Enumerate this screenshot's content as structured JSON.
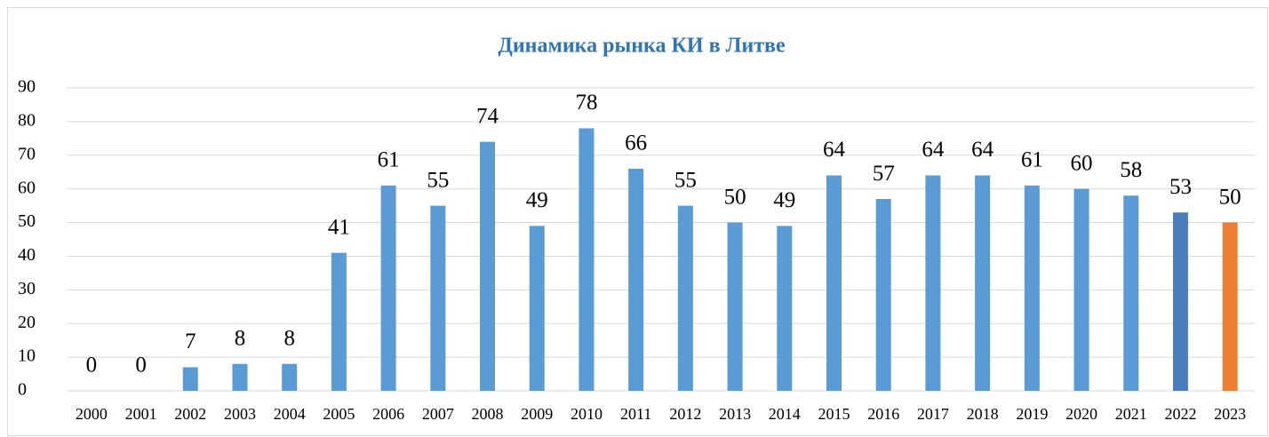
{
  "chart_data": {
    "type": "bar",
    "title": "Динамика рынка КИ в Литве",
    "categories": [
      "2000",
      "2001",
      "2002",
      "2003",
      "2004",
      "2005",
      "2006",
      "2007",
      "2008",
      "2009",
      "2010",
      "2011",
      "2012",
      "2013",
      "2014",
      "2015",
      "2016",
      "2017",
      "2018",
      "2019",
      "2020",
      "2021",
      "2022",
      "2023"
    ],
    "values": [
      0,
      0,
      7,
      8,
      8,
      41,
      61,
      55,
      74,
      49,
      78,
      66,
      55,
      50,
      49,
      64,
      57,
      64,
      64,
      61,
      60,
      58,
      53,
      50
    ],
    "colors": [
      "#5b9bd5",
      "#5b9bd5",
      "#5b9bd5",
      "#5b9bd5",
      "#5b9bd5",
      "#5b9bd5",
      "#5b9bd5",
      "#5b9bd5",
      "#5b9bd5",
      "#5b9bd5",
      "#5b9bd5",
      "#5b9bd5",
      "#5b9bd5",
      "#5b9bd5",
      "#5b9bd5",
      "#5b9bd5",
      "#5b9bd5",
      "#5b9bd5",
      "#5b9bd5",
      "#5b9bd5",
      "#5b9bd5",
      "#5b9bd5",
      "#4a7ebb",
      "#ed7d31"
    ],
    "ylim": [
      0,
      90
    ],
    "yticks": [
      0,
      10,
      20,
      30,
      40,
      50,
      60,
      70,
      80,
      90
    ],
    "grid": true
  }
}
